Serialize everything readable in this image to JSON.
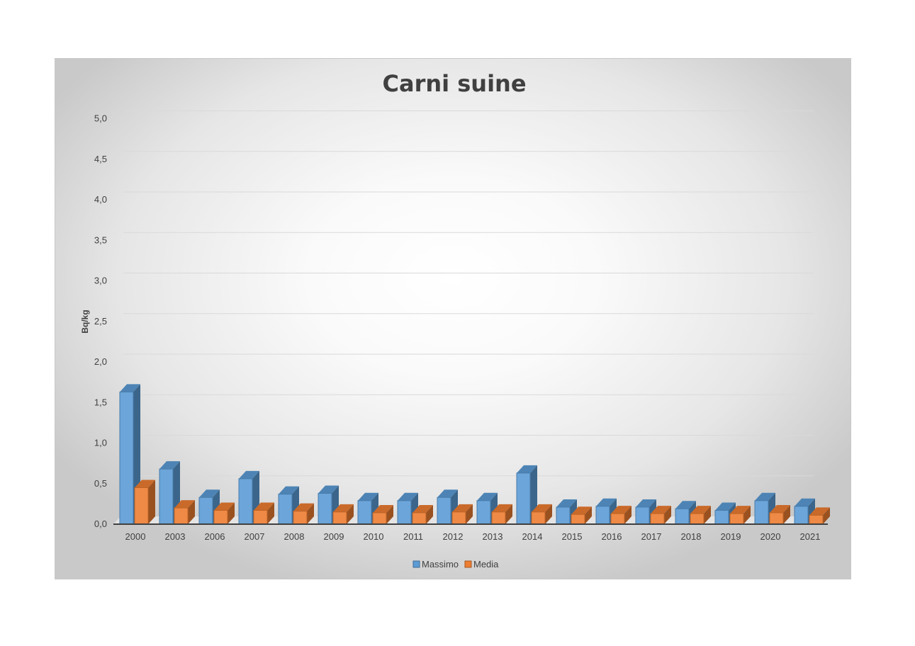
{
  "chart_data": {
    "type": "bar",
    "title": "Carni suine",
    "xlabel": "",
    "ylabel": "Bq/kg",
    "ylim": [
      0,
      5
    ],
    "yticks": [
      "0,0",
      "0,5",
      "1,0",
      "1,5",
      "2,0",
      "2,5",
      "3,0",
      "3,5",
      "4,0",
      "4,5",
      "5,0"
    ],
    "grid": true,
    "legend_position": "bottom",
    "categories": [
      "2000",
      "2003",
      "2006",
      "2007",
      "2008",
      "2009",
      "2010",
      "2011",
      "2012",
      "2013",
      "2014",
      "2015",
      "2016",
      "2017",
      "2018",
      "2019",
      "2020",
      "2021"
    ],
    "series": [
      {
        "name": "Massimo",
        "color": "#5b9bd5",
        "values": [
          1.63,
          0.68,
          0.33,
          0.56,
          0.37,
          0.38,
          0.29,
          0.29,
          0.33,
          0.29,
          0.63,
          0.21,
          0.22,
          0.21,
          0.19,
          0.17,
          0.29,
          0.22
        ]
      },
      {
        "name": "Media",
        "color": "#ed7d31",
        "values": [
          0.45,
          0.2,
          0.17,
          0.17,
          0.16,
          0.15,
          0.14,
          0.14,
          0.15,
          0.15,
          0.15,
          0.12,
          0.13,
          0.13,
          0.13,
          0.13,
          0.14,
          0.11
        ]
      }
    ]
  }
}
